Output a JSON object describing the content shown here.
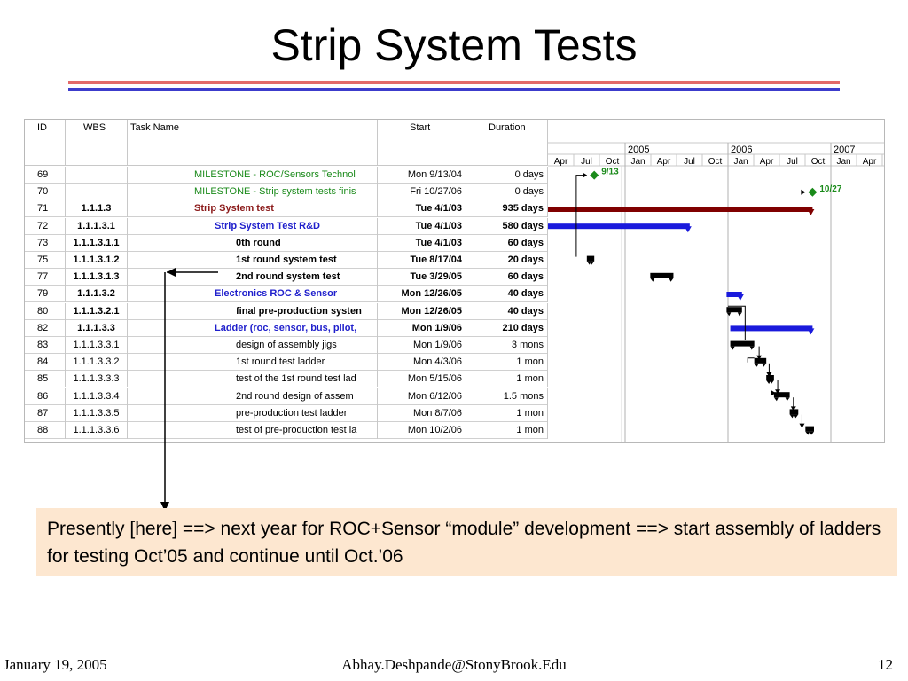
{
  "slide": {
    "title": "Strip System Tests",
    "note": "Presently [here] ==> next year for ROC+Sensor “module” development ==> start assembly of  ladders for testing Oct’05 and continue until Oct.’06",
    "footer_left": "January 19, 2005",
    "footer_center": "Abhay.Deshpande@StonyBrook.Edu",
    "footer_right": "12"
  },
  "gantt": {
    "headers": {
      "id": "ID",
      "wbs": "WBS",
      "name": "Task Name",
      "start": "Start",
      "duration": "Duration"
    },
    "years": [
      "2005",
      "2006",
      "2007"
    ],
    "months": [
      "Apr",
      "Jul",
      "Oct",
      "Jan",
      "Apr",
      "Jul",
      "Oct",
      "Jan",
      "Apr",
      "Jul",
      "Oct",
      "Jan",
      "Apr"
    ],
    "milestone_labels": [
      "9/13",
      "10/27"
    ],
    "colors": {
      "summary": "#800000",
      "subsummary": "#1a1adc",
      "task": "#000000",
      "milestone": "#1a8a1a"
    },
    "rows": [
      {
        "id": "69",
        "wbs": "",
        "name": "MILESTONE - ROC/Sensors Technol",
        "start": "Mon 9/13/04",
        "duration": "0 days",
        "style": "green"
      },
      {
        "id": "70",
        "wbs": "",
        "name": "MILESTONE - Strip system tests finis",
        "start": "Fri 10/27/06",
        "duration": "0 days",
        "style": "green"
      },
      {
        "id": "71",
        "wbs": "1.1.1.3",
        "name": "Strip System test",
        "start": "Tue 4/1/03",
        "duration": "935 days",
        "style": "maroon"
      },
      {
        "id": "72",
        "wbs": "1.1.1.3.1",
        "name": "Strip System Test R&D",
        "start": "Tue 4/1/03",
        "duration": "580 days",
        "style": "blue"
      },
      {
        "id": "73",
        "wbs": "1.1.1.3.1.1",
        "name": "0th  round",
        "start": "Tue 4/1/03",
        "duration": "60 days",
        "style": "boldtask"
      },
      {
        "id": "75",
        "wbs": "1.1.1.3.1.2",
        "name": "1st  round system  test",
        "start": "Tue 8/17/04",
        "duration": "20 days",
        "style": "boldtask"
      },
      {
        "id": "77",
        "wbs": "1.1.1.3.1.3",
        "name": "2nd round system  test",
        "start": "Tue 3/29/05",
        "duration": "60 days",
        "style": "boldtask"
      },
      {
        "id": "79",
        "wbs": "1.1.1.3.2",
        "name": "Electronics ROC & Sensor",
        "start": "Mon 12/26/05",
        "duration": "40 days",
        "style": "blue"
      },
      {
        "id": "80",
        "wbs": "1.1.1.3.2.1",
        "name": "final pre-production systen",
        "start": "Mon 12/26/05",
        "duration": "40 days",
        "style": "boldtask"
      },
      {
        "id": "82",
        "wbs": "1.1.1.3.3",
        "name": "Ladder (roc, sensor, bus, pilot,",
        "start": "Mon 1/9/06",
        "duration": "210 days",
        "style": "blue"
      },
      {
        "id": "83",
        "wbs": "1.1.1.3.3.1",
        "name": "design of assembly jigs",
        "start": "Mon 1/9/06",
        "duration": "3 mons",
        "style": "task"
      },
      {
        "id": "84",
        "wbs": "1.1.1.3.3.2",
        "name": "1st round test ladder",
        "start": "Mon 4/3/06",
        "duration": "1 mon",
        "style": "task"
      },
      {
        "id": "85",
        "wbs": "1.1.1.3.3.3",
        "name": "test of the 1st round test lad",
        "start": "Mon 5/15/06",
        "duration": "1 mon",
        "style": "task"
      },
      {
        "id": "86",
        "wbs": "1.1.1.3.3.4",
        "name": "2nd round design of assem",
        "start": "Mon 6/12/06",
        "duration": "1.5 mons",
        "style": "task"
      },
      {
        "id": "87",
        "wbs": "1.1.1.3.3.5",
        "name": "pre-production test ladder",
        "start": "Mon 8/7/06",
        "duration": "1 mon",
        "style": "task"
      },
      {
        "id": "88",
        "wbs": "1.1.1.3.3.6",
        "name": "test of pre-production test la",
        "start": "Mon 10/2/06",
        "duration": "1 mon",
        "style": "task"
      }
    ]
  }
}
